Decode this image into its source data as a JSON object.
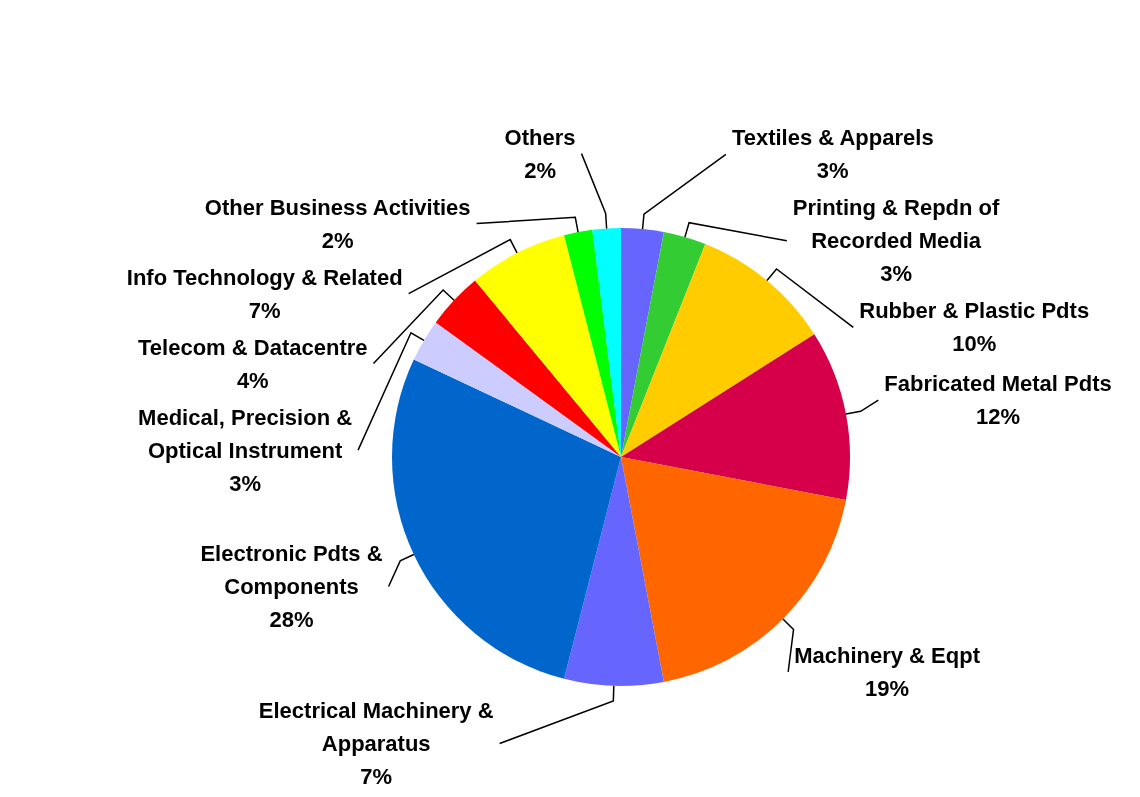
{
  "chart_data": {
    "type": "pie",
    "categories": [
      "Textiles & Apparels",
      "Printing & Repdn of Recorded Media",
      "Rubber & Plastic Pdts",
      "Fabricated Metal Pdts",
      "Machinery & Eqpt",
      "Electrical Machinery & Apparatus",
      "Electronic Pdts & Components",
      "Medical, Precision & Optical Instrument",
      "Telecom & Datacentre",
      "Info Technology & Related",
      "Other Business Activities",
      "Others"
    ],
    "values": [
      3,
      3,
      10,
      12,
      19,
      7,
      28,
      3,
      4,
      7,
      2,
      2
    ],
    "value_labels": [
      "3%",
      "3%",
      "10%",
      "12%",
      "19%",
      "7%",
      "28%",
      "3%",
      "4%",
      "7%",
      "2%",
      "2%"
    ],
    "colors": [
      "#6666ff",
      "#33cc33",
      "#ffcc00",
      "#d6004a",
      "#ff6600",
      "#6666ff",
      "#0066cc",
      "#ccccff",
      "#ff0000",
      "#ffff00",
      "#00ff00",
      "#00ffff"
    ]
  }
}
